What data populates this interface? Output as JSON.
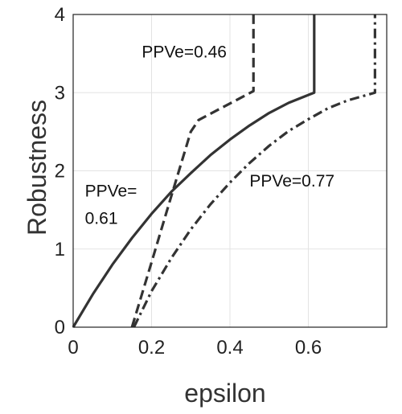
{
  "chart_data": {
    "type": "line",
    "title": "",
    "xlabel": "epsilon",
    "ylabel": "Robustness",
    "xlim": [
      0,
      0.8
    ],
    "ylim": [
      0,
      4
    ],
    "xticks": [
      0,
      0.2,
      0.4,
      0.6
    ],
    "xtick_labels": [
      "0",
      "0.2",
      "0.4",
      "0.6"
    ],
    "yticks": [
      0,
      1,
      2,
      3,
      4
    ],
    "ytick_labels": [
      "0",
      "1",
      "2",
      "3",
      "4"
    ],
    "grid": true,
    "legend": "none",
    "line_color": "#333333",
    "series": [
      {
        "style": "solid",
        "x": [
          0,
          0.05,
          0.1,
          0.15,
          0.2,
          0.25,
          0.3,
          0.35,
          0.4,
          0.45,
          0.5,
          0.55,
          0.6,
          0.615,
          0.615
        ],
        "y": [
          0,
          0.42,
          0.8,
          1.14,
          1.45,
          1.73,
          1.97,
          2.2,
          2.4,
          2.58,
          2.74,
          2.87,
          2.97,
          3.0,
          4.0
        ]
      },
      {
        "style": "dashed",
        "x": [
          0.15,
          0.2,
          0.25,
          0.3,
          0.32,
          0.46,
          0.46
        ],
        "y": [
          0.0,
          0.83,
          1.67,
          2.5,
          2.65,
          3.02,
          4.0
        ]
      },
      {
        "style": "dashdot",
        "x": [
          0.155,
          0.2,
          0.25,
          0.3,
          0.35,
          0.4,
          0.45,
          0.5,
          0.55,
          0.6,
          0.65,
          0.7,
          0.77,
          0.77
        ],
        "y": [
          0,
          0.46,
          0.88,
          1.25,
          1.57,
          1.85,
          2.1,
          2.32,
          2.51,
          2.66,
          2.8,
          2.9,
          3.0,
          4.0
        ]
      }
    ],
    "annotations": [
      {
        "lines": [
          "PPVe=0.46"
        ],
        "x": 0.175,
        "y": 3.45
      },
      {
        "lines": [
          "PPVe=",
          "0.61"
        ],
        "x": 0.03,
        "y": 1.67
      },
      {
        "lines": [
          "PPVe=0.77"
        ],
        "x": 0.45,
        "y": 1.8
      }
    ]
  }
}
